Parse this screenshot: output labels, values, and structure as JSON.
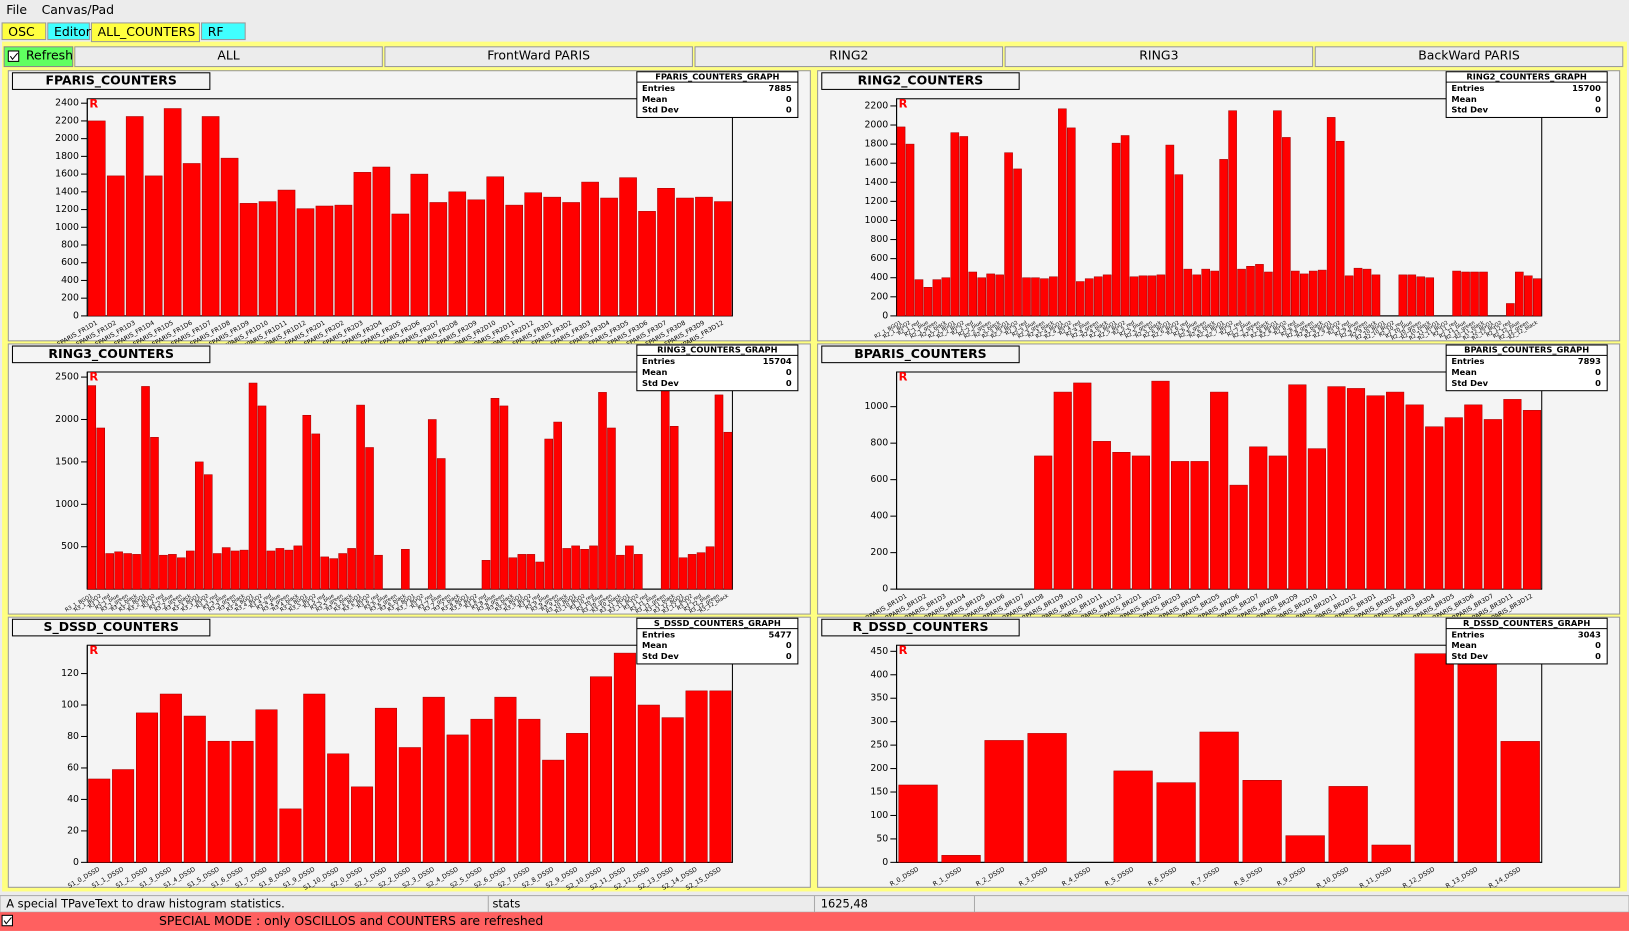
{
  "menu": [
    "File",
    "Canvas/Pad"
  ],
  "tabs": [
    "OSC",
    "Editor",
    "ALL_COUNTERS",
    "RF"
  ],
  "refresh": "Refresh",
  "buttons": [
    "ALL",
    "FrontWard PARIS",
    "RING2",
    "RING3",
    "BackWard PARIS"
  ],
  "status": [
    "A special TPaveText to draw histogram statistics.",
    "stats",
    "1625,48"
  ],
  "footer": "SPECIAL MODE : only OSCILLOS and COUNTERS are refreshed",
  "chart_data": [
    {
      "type": "bar",
      "title": "FPARIS_COUNTERS",
      "corner_mark": "R",
      "color": "#ff0000",
      "categories": [
        "FPARIS_FR1D1",
        "FPARIS_FR1D2",
        "FPARIS_FR1D3",
        "FPARIS_FR1D4",
        "FPARIS_FR1D5",
        "FPARIS_FR1D6",
        "FPARIS_FR1D7",
        "FPARIS_FR1D8",
        "FPARIS_FR1D9",
        "FPARIS_FR1D10",
        "FPARIS_FR1D11",
        "FPARIS_FR1D12",
        "FPARIS_FR2D1",
        "FPARIS_FR2D2",
        "FPARIS_FR2D3",
        "FPARIS_FR2D4",
        "FPARIS_FR2D5",
        "FPARIS_FR2D6",
        "FPARIS_FR2D7",
        "FPARIS_FR2D8",
        "FPARIS_FR2D9",
        "FPARIS_FR2D10",
        "FPARIS_FR2D11",
        "FPARIS_FR2D12",
        "FPARIS_FR3D1",
        "FPARIS_FR3D2",
        "FPARIS_FR3D3",
        "FPARIS_FR3D4",
        "FPARIS_FR3D5",
        "FPARIS_FR3D6",
        "FPARIS_FR3D7",
        "FPARIS_FR3D8",
        "FPARIS_FR3D9",
        "FPARIS_FR3D12"
      ],
      "values": [
        2200,
        1580,
        2250,
        1580,
        2340,
        1720,
        2250,
        1780,
        1270,
        1290,
        1420,
        1210,
        1240,
        1250,
        1620,
        1680,
        1150,
        1600,
        1280,
        1400,
        1310,
        1570,
        1250,
        1390,
        1340,
        1280,
        1510,
        1330,
        1560,
        1180,
        1440,
        1330,
        1340,
        1290
      ],
      "ylim": [
        0,
        2450
      ],
      "yticks": [
        0,
        200,
        400,
        600,
        800,
        1000,
        1200,
        1400,
        1600,
        1800,
        2000,
        2200,
        2400
      ],
      "stats": {
        "title": "FPARIS_COUNTERS_GRAPH",
        "labels": [
          "Entries",
          "Mean",
          "Std Dev"
        ],
        "values": [
          7885,
          0,
          0
        ]
      }
    },
    {
      "type": "bar",
      "title": "RING2_COUNTERS",
      "corner_mark": "R",
      "color": "#ff0000",
      "categories": [
        "R2_1_BGO1",
        "R2_1_BGO2",
        "R2_1_red",
        "R2_1_blue",
        "R2_1_green",
        "R2_1_black",
        "R2_2_BGO1",
        "R2_2_BGO2",
        "R2_2_red",
        "R2_2_blue",
        "R2_2_green",
        "R2_2_black",
        "R2_3_BGO1",
        "R2_3_BGO2",
        "R2_3_red",
        "R2_3_blue",
        "R2_3_green",
        "R2_3_black",
        "R2_4_BGO1",
        "R2_4_BGO2",
        "R2_4_red",
        "R2_4_blue",
        "R2_4_green",
        "R2_4_black",
        "R2_5_BGO1",
        "R2_5_BGO2",
        "R2_5_red",
        "R2_5_blue",
        "R2_5_green",
        "R2_5_black",
        "R2_6_BGO1",
        "R2_6_BGO2",
        "R2_6_red",
        "R2_6_blue",
        "R2_6_green",
        "R2_6_black",
        "R2_7_BGO1",
        "R2_7_BGO2",
        "R2_7_red",
        "R2_7_blue",
        "R2_7_green",
        "R2_7_black",
        "R2_8_BGO1",
        "R2_8_BGO2",
        "R2_8_red",
        "R2_8_blue",
        "R2_8_green",
        "R2_8_black",
        "R2_9_BGO1",
        "R2_9_BGO2",
        "R2_9_red",
        "R2_9_blue",
        "R2_9_green",
        "R2_9_black",
        "R2_10_BGO1",
        "R2_10_BGO2",
        "R2_10_red",
        "R2_10_blue",
        "R2_10_green",
        "R2_10_black",
        "R2_11_BGO1",
        "R2_11_BGO2",
        "R2_11_red",
        "R2_11_blue",
        "R2_11_green",
        "R2_11_black",
        "R2_12_BGO1",
        "R2_12_BGO2",
        "R2_12_red",
        "R2_12_blue",
        "R2_12_green",
        "R2_12_black"
      ],
      "values": [
        1980,
        1800,
        380,
        300,
        380,
        400,
        1920,
        1880,
        460,
        400,
        440,
        430,
        1710,
        1540,
        400,
        400,
        390,
        410,
        2170,
        1970,
        360,
        390,
        410,
        430,
        1810,
        1890,
        410,
        420,
        420,
        430,
        1790,
        1480,
        490,
        430,
        490,
        470,
        1640,
        2150,
        490,
        520,
        540,
        460,
        2150,
        1870,
        470,
        440,
        470,
        480,
        2080,
        1830,
        420,
        500,
        490,
        430,
        0,
        0,
        430,
        430,
        410,
        400,
        0,
        0,
        470,
        460,
        460,
        460,
        0,
        0,
        130,
        460,
        420,
        390
      ],
      "ylim": [
        0,
        2275
      ],
      "yticks": [
        0,
        200,
        400,
        600,
        800,
        1000,
        1200,
        1400,
        1600,
        1800,
        2000,
        2200
      ],
      "stats": {
        "title": "RING2_COUNTERS_GRAPH",
        "labels": [
          "Entries",
          "Mean",
          "Std Dev"
        ],
        "values": [
          15700,
          0,
          0
        ]
      }
    },
    {
      "type": "bar",
      "title": "RING3_COUNTERS",
      "corner_mark": "R",
      "color": "#ff0000",
      "categories": [
        "R3_1_BGO1",
        "R3_1_BGO2",
        "R3_1_red",
        "R3_1_blue",
        "R3_1_green",
        "R3_1_black",
        "R3_2_BGO1",
        "R3_2_BGO2",
        "R3_2_red",
        "R3_2_blue",
        "R3_2_green",
        "R3_2_black",
        "R3_3_BGO1",
        "R3_3_BGO2",
        "R3_3_red",
        "R3_3_blue",
        "R3_3_green",
        "R3_3_black",
        "R3_4_BGO1",
        "R3_4_BGO2",
        "R3_4_red",
        "R3_4_blue",
        "R3_4_green",
        "R3_4_black",
        "R3_5_BGO1",
        "R3_5_BGO2",
        "R3_5_red",
        "R3_5_blue",
        "R3_5_green",
        "R3_5_black",
        "R3_6_BGO1",
        "R3_6_BGO2",
        "R3_6_red",
        "R3_6_blue",
        "R3_6_green",
        "R3_6_black",
        "R3_7_BGO1",
        "R3_7_BGO2",
        "R3_7_red",
        "R3_7_blue",
        "R3_7_green",
        "R3_7_black",
        "R3_8_BGO1",
        "R3_8_BGO2",
        "R3_8_red",
        "R3_8_blue",
        "R3_8_green",
        "R3_8_black",
        "R3_9_BGO1",
        "R3_9_BGO2",
        "R3_9_red",
        "R3_9_blue",
        "R3_9_green",
        "R3_9_black",
        "R3_10_BGO1",
        "R3_10_BGO2",
        "R3_10_red",
        "R3_10_blue",
        "R3_10_green",
        "R3_10_black",
        "R3_11_BGO1",
        "R3_11_BGO2",
        "R3_11_red",
        "R3_11_blue",
        "R3_11_green",
        "R3_11_black",
        "R3_12_BGO1",
        "R3_12_BGO2",
        "R3_12_red",
        "R3_12_blue",
        "R3_12_green",
        "R3_12_black"
      ],
      "values": [
        2400,
        1900,
        420,
        440,
        420,
        410,
        2390,
        1790,
        400,
        410,
        370,
        450,
        1500,
        1350,
        420,
        490,
        450,
        460,
        2430,
        2160,
        450,
        480,
        460,
        510,
        2050,
        1830,
        380,
        360,
        420,
        480,
        2170,
        1670,
        400,
        0,
        0,
        470,
        0,
        0,
        2000,
        1540,
        0,
        0,
        0,
        0,
        340,
        2250,
        2160,
        370,
        410,
        410,
        320,
        1770,
        1970,
        480,
        510,
        470,
        510,
        2320,
        1900,
        400,
        510,
        410,
        0,
        0,
        2360,
        1920,
        370,
        410,
        430,
        500,
        2290,
        1850
      ],
      "ylim": [
        0,
        2560
      ],
      "yticks": [
        500,
        1000,
        1500,
        2000,
        2500
      ],
      "stats": {
        "title": "RING3_COUNTERS_GRAPH",
        "labels": [
          "Entries",
          "Mean",
          "Std Dev"
        ],
        "values": [
          15704,
          0,
          0
        ]
      }
    },
    {
      "type": "bar",
      "title": "BPARIS_COUNTERS",
      "corner_mark": "R",
      "color": "#ff0000",
      "categories": [
        "BPARIS_BR1D1",
        "BPARIS_BR1D2",
        "BPARIS_BR1D3",
        "BPARIS_BR1D4",
        "BPARIS_BR1D5",
        "BPARIS_BR1D6",
        "BPARIS_BR1D7",
        "BPARIS_BR1D8",
        "BPARIS_BR1D9",
        "BPARIS_BR1D10",
        "BPARIS_BR1D11",
        "BPARIS_BR1D12",
        "BPARIS_BR2D1",
        "BPARIS_BR2D2",
        "BPARIS_BR2D3",
        "BPARIS_BR2D4",
        "BPARIS_BR2D5",
        "BPARIS_BR2D6",
        "BPARIS_BR2D7",
        "BPARIS_BR2D8",
        "BPARIS_BR2D9",
        "BPARIS_BR2D10",
        "BPARIS_BR2D11",
        "BPARIS_BR2D12",
        "BPARIS_BR3D1",
        "BPARIS_BR3D2",
        "BPARIS_BR3D3",
        "BPARIS_BR3D4",
        "BPARIS_BR3D5",
        "BPARIS_BR3D6",
        "BPARIS_BR3D7",
        "BPARIS_BR3D11",
        "BPARIS_BR3D12"
      ],
      "values": [
        0,
        0,
        0,
        0,
        0,
        0,
        0,
        730,
        1080,
        1130,
        810,
        750,
        730,
        1140,
        700,
        700,
        1080,
        570,
        780,
        730,
        1120,
        770,
        1110,
        1100,
        1060,
        1080,
        1010,
        890,
        940,
        1010,
        930,
        1040,
        980
      ],
      "ylim": [
        0,
        1190
      ],
      "yticks": [
        0,
        200,
        400,
        600,
        800,
        1000
      ],
      "stats": {
        "title": "BPARIS_COUNTERS_GRAPH",
        "labels": [
          "Entries",
          "Mean",
          "Std Dev"
        ],
        "values": [
          7893,
          0,
          0
        ]
      }
    },
    {
      "type": "bar",
      "title": "S_DSSD_COUNTERS",
      "corner_mark": "R",
      "color": "#ff0000",
      "categories": [
        "S1_0_DSSD",
        "S1_1_DSSD",
        "S1_2_DSSD",
        "S1_3_DSSD",
        "S1_4_DSSD",
        "S1_5_DSSD",
        "S1_6_DSSD",
        "S1_7_DSSD",
        "S1_8_DSSD",
        "S1_9_DSSD",
        "S1_10_DSSD",
        "S2_0_DSSD",
        "S2_1_DSSD",
        "S2_2_DSSD",
        "S2_3_DSSD",
        "S2_4_DSSD",
        "S2_5_DSSD",
        "S2_6_DSSD",
        "S2_7_DSSD",
        "S2_8_DSSD",
        "S2_9_DSSD",
        "S2_10_DSSD",
        "S2_11_DSSD",
        "S2_12_DSSD",
        "S2_13_DSSD",
        "S2_14_DSSD",
        "S2_15_DSSD"
      ],
      "values": [
        53,
        59,
        95,
        107,
        93,
        77,
        77,
        97,
        34,
        107,
        69,
        48,
        98,
        73,
        105,
        81,
        91,
        105,
        91,
        65,
        82,
        118,
        133,
        100,
        92,
        109,
        109
      ],
      "ylim": [
        0,
        138
      ],
      "yticks": [
        0,
        20,
        40,
        60,
        80,
        100,
        120
      ],
      "stats": {
        "title": "S_DSSD_COUNTERS_GRAPH",
        "labels": [
          "Entries",
          "Mean",
          "Std Dev"
        ],
        "values": [
          5477,
          0,
          0
        ]
      }
    },
    {
      "type": "bar",
      "title": "R_DSSD_COUNTERS",
      "corner_mark": "R",
      "color": "#ff0000",
      "categories": [
        "R_0_DSSD",
        "R_1_DSSD",
        "R_2_DSSD",
        "R_3_DSSD",
        "R_4_DSSD",
        "R_5_DSSD",
        "R_6_DSSD",
        "R_7_DSSD",
        "R_8_DSSD",
        "R_9_DSSD",
        "R_10_DSSD",
        "R_11_DSSD",
        "R_12_DSSD",
        "R_13_DSSD",
        "R_14_DSSD"
      ],
      "values": [
        165,
        15,
        260,
        275,
        0,
        195,
        170,
        278,
        175,
        57,
        162,
        37,
        445,
        450,
        258
      ],
      "ylim": [
        0,
        463
      ],
      "yticks": [
        0,
        50,
        100,
        150,
        200,
        250,
        300,
        350,
        400,
        450
      ],
      "stats": {
        "title": "R_DSSD_COUNTERS_GRAPH",
        "labels": [
          "Entries",
          "Mean",
          "Std Dev"
        ],
        "values": [
          3043,
          0,
          0
        ]
      }
    }
  ]
}
